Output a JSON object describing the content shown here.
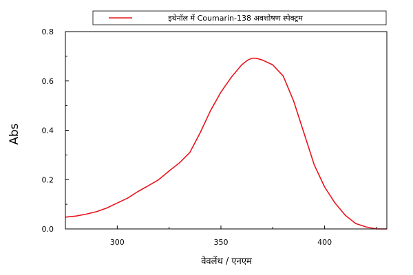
{
  "chart_data": {
    "type": "line",
    "title": "",
    "xlabel": "वेवलेंथ / एनएम",
    "ylabel": "Abs",
    "xlim": [
      275,
      430
    ],
    "ylim": [
      0,
      0.8
    ],
    "xticks": [
      300,
      350,
      400
    ],
    "yticks": [
      0.0,
      0.2,
      0.4,
      0.6,
      0.8
    ],
    "grid": false,
    "legend": "top-center",
    "series": [
      {
        "name": "इथेनॉल में Coumarin-138 अवशोषण स्पेक्ट्रम",
        "color": "#e8141c",
        "x": [
          275,
          280,
          285,
          290,
          295,
          300,
          305,
          310,
          315,
          320,
          325,
          330,
          335,
          340,
          345,
          350,
          355,
          360,
          363,
          365,
          367,
          370,
          375,
          380,
          385,
          390,
          395,
          400,
          405,
          410,
          415,
          420,
          425,
          430
        ],
        "y": [
          0.048,
          0.052,
          0.06,
          0.07,
          0.085,
          0.105,
          0.125,
          0.152,
          0.175,
          0.2,
          0.235,
          0.268,
          0.31,
          0.39,
          0.48,
          0.555,
          0.615,
          0.665,
          0.685,
          0.692,
          0.692,
          0.685,
          0.665,
          0.62,
          0.52,
          0.39,
          0.26,
          0.17,
          0.105,
          0.055,
          0.022,
          0.008,
          0.0,
          0.0
        ]
      }
    ]
  }
}
